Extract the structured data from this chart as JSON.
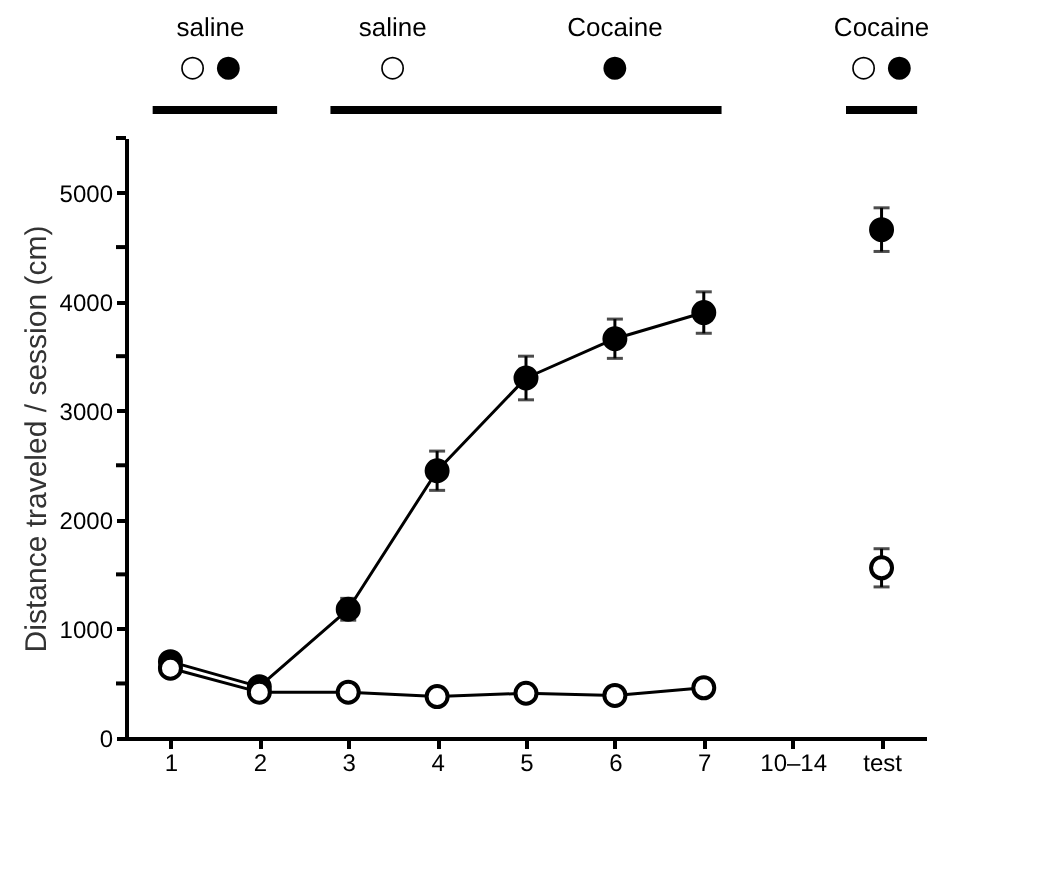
{
  "chart_data": {
    "type": "line",
    "ylabel": "Distance traveled / session (cm)",
    "categories": [
      "1",
      "2",
      "3",
      "4",
      "5",
      "6",
      "7",
      "10–14",
      "test"
    ],
    "series": [
      {
        "color": "#000000",
        "values": [
          700,
          470,
          1180,
          2450,
          3300,
          3660,
          3900,
          null,
          4660
        ],
        "errors": [
          50,
          40,
          100,
          180,
          200,
          180,
          190,
          null,
          200
        ]
      },
      {
        "color": "#000000",
        "values": [
          640,
          420,
          420,
          380,
          410,
          390,
          460,
          null,
          1560
        ],
        "errors": [
          30,
          30,
          30,
          30,
          30,
          30,
          30,
          null,
          175
        ]
      }
    ],
    "ylim": [
      0,
      5500
    ],
    "yticks": [
      0,
      {
        "value": 500,
        "label": null
      },
      1000,
      {
        "value": 1500,
        "label": null
      },
      2000,
      {
        "value": 2500,
        "label": null
      },
      3000,
      {
        "value": 3500,
        "label": null
      },
      4000,
      {
        "value": 4500,
        "label": null
      },
      5000,
      {
        "value": 5500,
        "label": null
      }
    ],
    "annotations": [
      "saline",
      "○ ●",
      "saline",
      "○",
      "Cocaine",
      "●",
      "Cocaine",
      "○ ●"
    ],
    "marker": "circle",
    "line_style": "solid"
  }
}
